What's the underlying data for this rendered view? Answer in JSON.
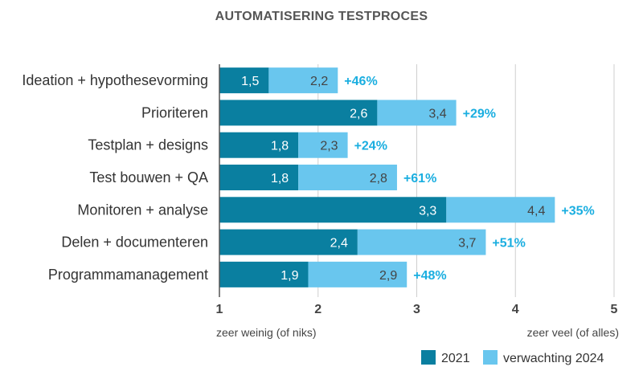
{
  "chart_data": {
    "type": "bar",
    "orientation": "horizontal",
    "title": "AUTOMATISERING TESTPROCES",
    "categories": [
      "Ideation + hypothesevorming",
      "Prioriteren",
      "Testplan + designs",
      "Test bouwen + QA",
      "Monitoren + analyse",
      "Delen + documenteren",
      "Programmamanagement"
    ],
    "series": [
      {
        "name": "2021",
        "color": "#0a7fa0",
        "values": [
          1.5,
          2.6,
          1.8,
          1.8,
          3.3,
          2.4,
          1.9
        ],
        "labels": [
          "1,5",
          "2,6",
          "1,8",
          "1,8",
          "3,3",
          "2,4",
          "1,9"
        ]
      },
      {
        "name": "verwachting 2024",
        "color": "#69c6ee",
        "values": [
          2.2,
          3.4,
          2.3,
          2.8,
          4.4,
          3.7,
          2.9
        ],
        "labels": [
          "2,2",
          "3,4",
          "2,3",
          "2,8",
          "4,4",
          "3,7",
          "2,9"
        ]
      }
    ],
    "growth_labels": [
      "+46%",
      "+29%",
      "+24%",
      "+61%",
      "+35%",
      "+51%",
      "+48%"
    ],
    "xlim": [
      1,
      5
    ],
    "xticks": [
      "1",
      "2",
      "3",
      "4",
      "5"
    ],
    "xaxis_low_label": "zeer weinig (of niks)",
    "xaxis_high_label": "zeer veel (of alles)",
    "grid": "vertical",
    "legend_position": "bottom-right",
    "growth_color": "#1aaee0"
  }
}
